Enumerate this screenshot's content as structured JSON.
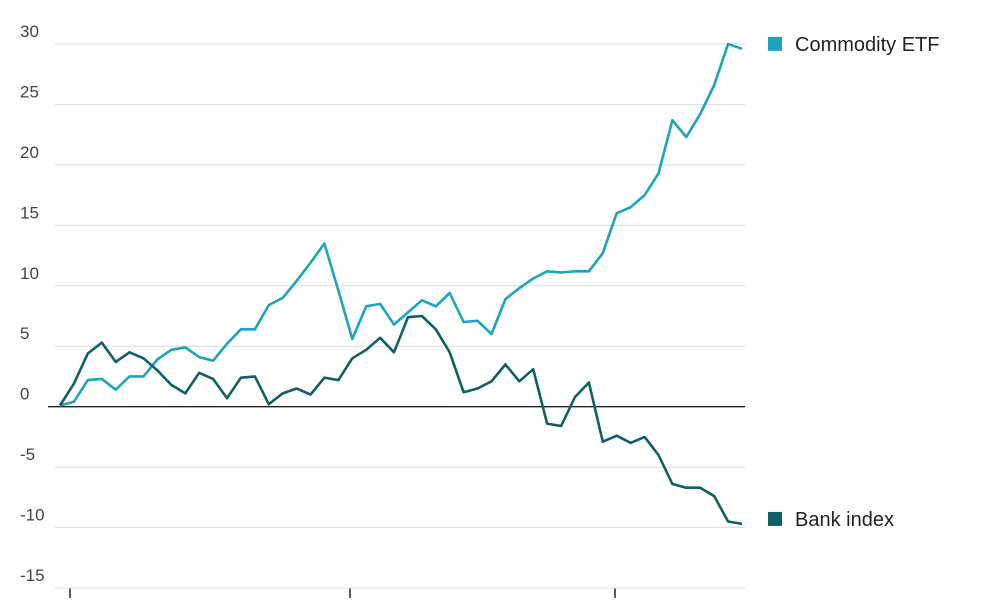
{
  "chart_data": {
    "type": "line",
    "categories": [
      null,
      null,
      null,
      null,
      null,
      null,
      null,
      null,
      null,
      null,
      null,
      null,
      null,
      null,
      null,
      null,
      null,
      null,
      null,
      null,
      null,
      null,
      null,
      null,
      null,
      null,
      null,
      null,
      null,
      null,
      null,
      null,
      null,
      null,
      null,
      null,
      null,
      null,
      null,
      null,
      null,
      null,
      null,
      null,
      null,
      null,
      null,
      null,
      null,
      null
    ],
    "series": [
      {
        "name": "Commodity ETF",
        "color": "#1ba3bf",
        "values": [
          0.1,
          0.4,
          2.2,
          2.3,
          1.4,
          2.5,
          2.5,
          3.9,
          4.7,
          4.9,
          4.1,
          3.8,
          5.2,
          6.4,
          6.4,
          8.4,
          9.0,
          10.4,
          11.9,
          13.5,
          9.6,
          5.6,
          8.3,
          8.5,
          6.8,
          7.8,
          8.8,
          8.3,
          9.4,
          7.0,
          7.1,
          6.0,
          8.9,
          9.8,
          10.6,
          11.2,
          11.1,
          11.2,
          11.2,
          12.7,
          16.0,
          16.5,
          17.5,
          19.3,
          23.7,
          22.3,
          24.2,
          26.6,
          30.0,
          29.6
        ]
      },
      {
        "name": "Bank index",
        "color": "#0e5f66",
        "values": [
          0.1,
          1.9,
          4.4,
          5.3,
          3.7,
          4.5,
          4.0,
          3.0,
          1.8,
          1.1,
          2.8,
          2.3,
          0.7,
          2.4,
          2.5,
          0.2,
          1.1,
          1.5,
          1.0,
          2.4,
          2.2,
          4.0,
          4.7,
          5.7,
          4.5,
          7.4,
          7.5,
          6.4,
          4.5,
          1.2,
          1.5,
          2.1,
          3.5,
          2.1,
          3.1,
          -1.4,
          -1.6,
          0.8,
          2.0,
          -2.9,
          -2.4,
          -3.0,
          -2.5,
          -4.0,
          -6.4,
          -6.7,
          -6.7,
          -7.4,
          -9.5,
          -9.7
        ]
      }
    ],
    "ylim": [
      -15,
      30
    ],
    "yticks": [
      -15,
      -10,
      -5,
      0,
      5,
      10,
      15,
      20,
      25,
      30
    ],
    "grid": true,
    "legend": "right"
  }
}
